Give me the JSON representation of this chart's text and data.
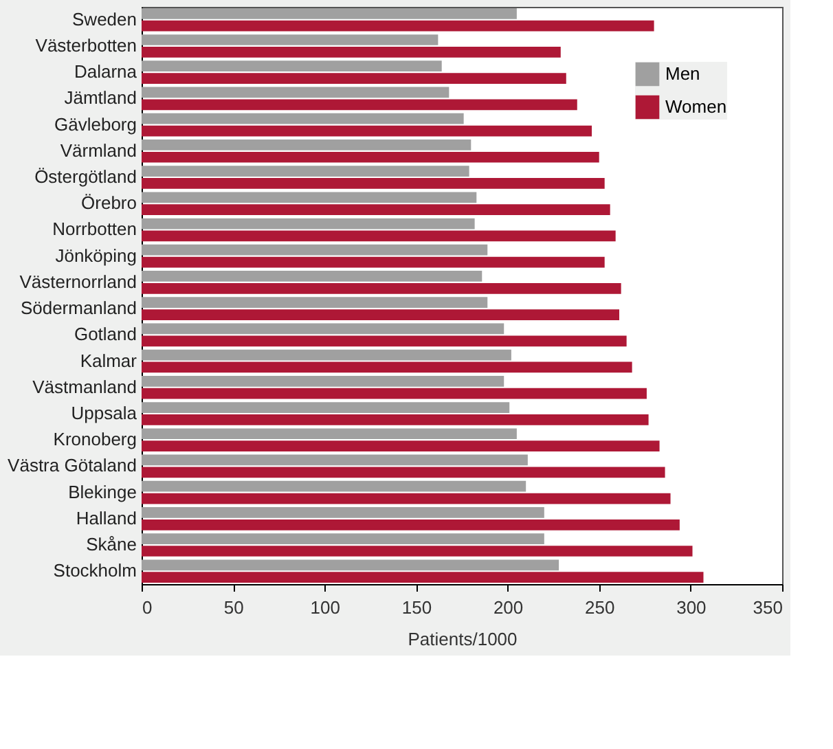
{
  "chart_data": {
    "type": "bar",
    "orientation": "horizontal",
    "xlabel": "Patients/1000",
    "categories": [
      "Sweden",
      "Västerbotten",
      "Dalarna",
      "Jämtland",
      "Gävleborg",
      "Värmland",
      "Östergötland",
      "Örebro",
      "Norrbotten",
      "Jönköping",
      "Västernorrland",
      "Södermanland",
      "Gotland",
      "Kalmar",
      "Västmanland",
      "Uppsala",
      "Kronoberg",
      "Västra Götaland",
      "Blekinge",
      "Halland",
      "Skåne",
      "Stockholm"
    ],
    "series": [
      {
        "name": "Men",
        "color": "#a0a0a0",
        "values": [
          205,
          162,
          164,
          168,
          176,
          180,
          179,
          183,
          182,
          189,
          186,
          189,
          198,
          202,
          198,
          201,
          205,
          211,
          210,
          220,
          220,
          228
        ]
      },
      {
        "name": "Women",
        "color": "#ae1836",
        "values": [
          280,
          229,
          232,
          238,
          246,
          250,
          253,
          256,
          259,
          253,
          262,
          261,
          265,
          268,
          276,
          277,
          283,
          286,
          289,
          294,
          301,
          307
        ]
      }
    ],
    "xlim": [
      0,
      350
    ],
    "xticks": [
      0,
      50,
      100,
      150,
      200,
      250,
      300,
      350
    ],
    "legend": "top right",
    "grid": false
  }
}
